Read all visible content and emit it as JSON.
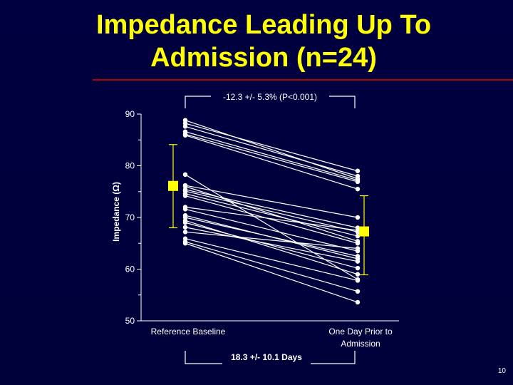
{
  "slide": {
    "title_line1": "Impedance Leading Up To",
    "title_line2": "Admission (n=24)",
    "page_number": "10"
  },
  "annotations": {
    "change": "-12.3 +/- 5.3% (P<0.001)",
    "duration": "18.3 +/- 10.1 Days"
  },
  "colors": {
    "background": "#000040",
    "title": "#ffff00",
    "axis_text": "#ffffff",
    "lines": "#ffffff",
    "mean_marker": "#ffff00",
    "rule": "#b00000"
  },
  "chart_data": {
    "type": "line",
    "title": "",
    "xlabel": "",
    "ylabel": "Impedance (Ω)",
    "categories": [
      "Reference Baseline",
      "One Day Prior to Admission"
    ],
    "ylim": [
      50,
      90
    ],
    "yticks": [
      "90",
      "80",
      "70",
      "60",
      "50"
    ],
    "grid": false,
    "legend": "none",
    "pairs": [
      [
        88.8,
        77.5
      ],
      [
        88.2,
        79.0
      ],
      [
        87.6,
        78.0
      ],
      [
        86.6,
        77.2
      ],
      [
        86.1,
        76.9
      ],
      [
        85.9,
        75.5
      ],
      [
        78.3,
        58.0
      ],
      [
        76.2,
        70.0
      ],
      [
        75.4,
        68.0
      ],
      [
        75.1,
        67.2
      ],
      [
        74.6,
        66.4
      ],
      [
        74.2,
        65.0
      ],
      [
        71.6,
        63.5
      ],
      [
        70.4,
        62.0
      ],
      [
        69.4,
        59.0
      ],
      [
        68.1,
        61.5
      ],
      [
        67.2,
        64.0
      ],
      [
        65.9,
        57.8
      ],
      [
        65.3,
        55.7
      ],
      [
        65.0,
        53.6
      ],
      [
        69.0,
        60.2
      ],
      [
        72.0,
        67.5
      ],
      [
        76.0,
        65.4
      ],
      [
        70.0,
        62.5
      ]
    ],
    "mean": [
      76.1,
      67.3
    ],
    "error_low": [
      68.0,
      58.9
    ],
    "error_high": [
      84.1,
      74.2
    ]
  }
}
